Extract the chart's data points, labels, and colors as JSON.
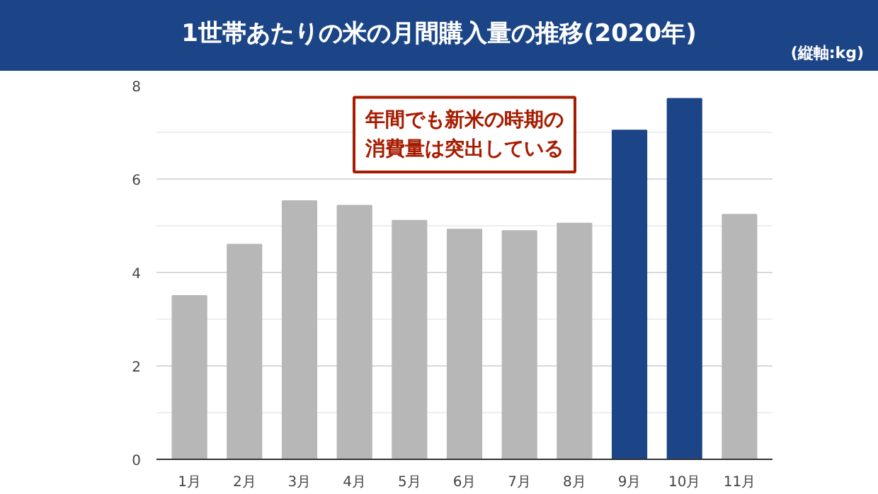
{
  "chart_data": {
    "type": "bar",
    "title": "1世帯あたりの米の月間購入量の推移(2020年)",
    "ylabel": "(縦軸:kg)",
    "categories": [
      "1月",
      "2月",
      "3月",
      "4月",
      "5月",
      "6月",
      "7月",
      "8月",
      "9月",
      "10月",
      "11月"
    ],
    "values": [
      3.5,
      4.6,
      5.53,
      5.43,
      5.11,
      4.92,
      4.89,
      5.05,
      7.04,
      7.72,
      5.24
    ],
    "colors": [
      "#b7b7b7",
      "#b7b7b7",
      "#b7b7b7",
      "#b7b7b7",
      "#b7b7b7",
      "#b7b7b7",
      "#b7b7b7",
      "#b7b7b7",
      "#1c4587",
      "#1c4587",
      "#b7b7b7"
    ],
    "ylim": [
      0,
      8
    ],
    "yticks": [
      0,
      2,
      4,
      6,
      8
    ],
    "grid": "y",
    "annotations": [
      "年間でも新米の時期の消費量は突出している"
    ]
  }
}
